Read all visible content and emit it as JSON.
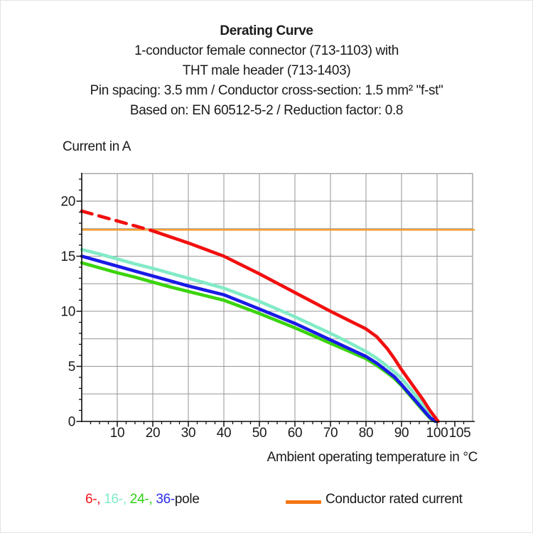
{
  "title_block": {
    "title": "Derating Curve",
    "line1": "1-conductor female connector (713-1103) with",
    "line2": "THT male header (713-1403)",
    "line3": "Pin spacing: 3.5 mm / Conductor cross-section: 1.5 mm² \"f-st\"",
    "line4": "Based on: EN 60512-5-2 / Reduction factor: 0.8"
  },
  "chart_data": {
    "type": "line",
    "y_axis": {
      "label": "Current in A",
      "min": 0,
      "max": 22.5,
      "tick_labels": [
        0,
        5,
        10,
        15,
        20
      ],
      "grid_step": 2.5,
      "minor_tick_step": 1
    },
    "x_axis": {
      "label": "Ambient operating temperature in °C",
      "min": 0,
      "max": 110,
      "tick_labels": [
        10,
        20,
        30,
        40,
        50,
        60,
        70,
        80,
        90,
        100,
        105
      ],
      "grid_step": 10,
      "minor_tick_step": 2.5
    },
    "rated_current_A": 17.4,
    "colors": {
      "grid": "#969696",
      "frame": "#969696",
      "axis": "#111111",
      "rated_line": "#f5a033"
    },
    "series": [
      {
        "name": "16-pole",
        "color": "#82ebc6",
        "points": [
          [
            0,
            15.6
          ],
          [
            5,
            15.2
          ],
          [
            10,
            14.75
          ],
          [
            15,
            14.3
          ],
          [
            20,
            13.9
          ],
          [
            25,
            13.45
          ],
          [
            30,
            13.0
          ],
          [
            35,
            12.55
          ],
          [
            40,
            12.1
          ],
          [
            45,
            11.5
          ],
          [
            50,
            10.9
          ],
          [
            55,
            10.2
          ],
          [
            60,
            9.5
          ],
          [
            65,
            8.75
          ],
          [
            70,
            8.0
          ],
          [
            75,
            7.2
          ],
          [
            80,
            6.35
          ],
          [
            83,
            5.75
          ],
          [
            86,
            5.0
          ],
          [
            88,
            4.5
          ],
          [
            90,
            3.9
          ],
          [
            92,
            3.15
          ],
          [
            94,
            2.35
          ],
          [
            96,
            1.55
          ],
          [
            98,
            0.75
          ],
          [
            100,
            0
          ]
        ]
      },
      {
        "name": "24-pole",
        "color": "#3bd40e",
        "points": [
          [
            0,
            14.4
          ],
          [
            5,
            13.95
          ],
          [
            10,
            13.5
          ],
          [
            15,
            13.1
          ],
          [
            20,
            12.65
          ],
          [
            25,
            12.2
          ],
          [
            30,
            11.8
          ],
          [
            35,
            11.4
          ],
          [
            40,
            11.0
          ],
          [
            45,
            10.4
          ],
          [
            50,
            9.8
          ],
          [
            55,
            9.15
          ],
          [
            60,
            8.5
          ],
          [
            65,
            7.8
          ],
          [
            70,
            7.1
          ],
          [
            75,
            6.4
          ],
          [
            80,
            5.7
          ],
          [
            83,
            5.1
          ],
          [
            86,
            4.4
          ],
          [
            88,
            3.9
          ],
          [
            90,
            3.25
          ],
          [
            92,
            2.5
          ],
          [
            94,
            1.75
          ],
          [
            96,
            1.0
          ],
          [
            98,
            0.3
          ],
          [
            99.4,
            0
          ]
        ]
      },
      {
        "name": "36-pole",
        "color": "#1a1ae6",
        "points": [
          [
            0,
            15.0
          ],
          [
            5,
            14.55
          ],
          [
            10,
            14.1
          ],
          [
            15,
            13.65
          ],
          [
            20,
            13.2
          ],
          [
            25,
            12.75
          ],
          [
            30,
            12.3
          ],
          [
            35,
            11.9
          ],
          [
            40,
            11.5
          ],
          [
            45,
            10.85
          ],
          [
            50,
            10.2
          ],
          [
            55,
            9.55
          ],
          [
            60,
            8.9
          ],
          [
            65,
            8.15
          ],
          [
            70,
            7.4
          ],
          [
            75,
            6.65
          ],
          [
            80,
            5.9
          ],
          [
            83,
            5.3
          ],
          [
            86,
            4.55
          ],
          [
            88,
            4.05
          ],
          [
            90,
            3.35
          ],
          [
            92,
            2.6
          ],
          [
            94,
            1.85
          ],
          [
            96,
            1.1
          ],
          [
            98,
            0.35
          ],
          [
            99.6,
            0
          ]
        ]
      },
      {
        "name": "6-pole",
        "color": "#f20f0f",
        "dash_until": 20,
        "points": [
          [
            0,
            19.1
          ],
          [
            5,
            18.65
          ],
          [
            10,
            18.2
          ],
          [
            15,
            17.75
          ],
          [
            20,
            17.3
          ],
          [
            25,
            16.75
          ],
          [
            30,
            16.2
          ],
          [
            35,
            15.6
          ],
          [
            40,
            15.0
          ],
          [
            45,
            14.2
          ],
          [
            50,
            13.4
          ],
          [
            55,
            12.55
          ],
          [
            60,
            11.7
          ],
          [
            65,
            10.85
          ],
          [
            70,
            10.0
          ],
          [
            75,
            9.2
          ],
          [
            80,
            8.4
          ],
          [
            83,
            7.7
          ],
          [
            86,
            6.6
          ],
          [
            88,
            5.7
          ],
          [
            90,
            4.7
          ],
          [
            92,
            3.8
          ],
          [
            94,
            2.9
          ],
          [
            96,
            2.0
          ],
          [
            98,
            1.0
          ],
          [
            100.3,
            0
          ]
        ]
      }
    ]
  },
  "legend": {
    "pole_items": [
      {
        "label": "6-,",
        "color": "#f1131c"
      },
      {
        "label": "16-,",
        "color": "#7fecc7"
      },
      {
        "label": "24-,",
        "color": "#2dd212"
      },
      {
        "label": "36-",
        "color": "#2b2bea"
      }
    ],
    "pole_suffix": "pole",
    "swatch_color": "#f47612",
    "rated_label": "Conductor rated current"
  }
}
